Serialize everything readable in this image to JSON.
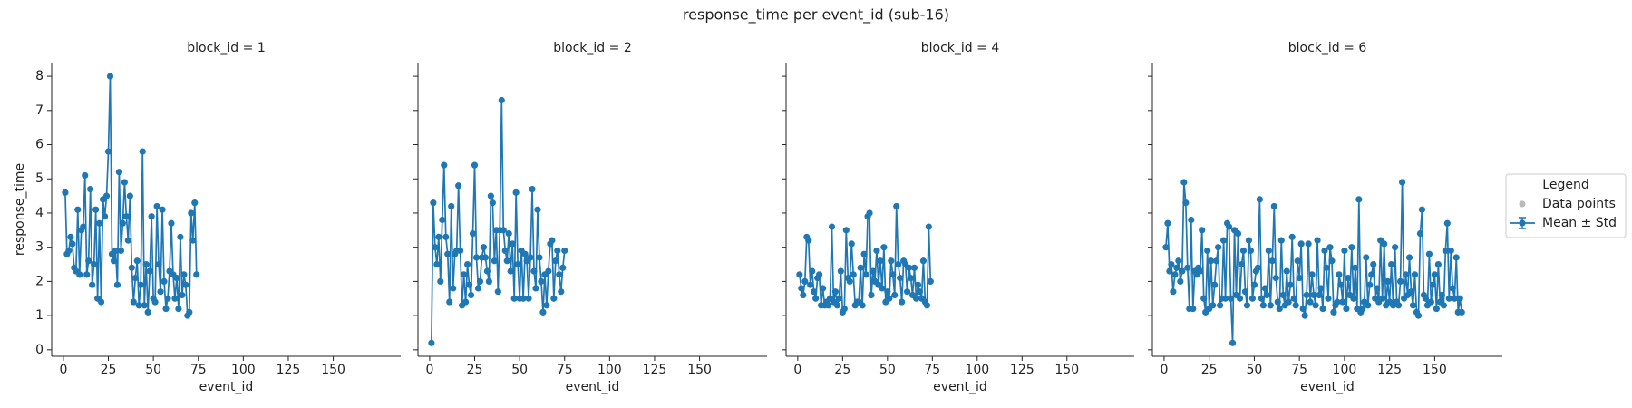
{
  "title": "response_time per event_id (sub-16)",
  "legend": {
    "title": "Legend",
    "position": "right",
    "items": [
      {
        "label": "Data points",
        "color": "#bbbbbb"
      },
      {
        "label": "Mean ± Std",
        "color": "#1f77b4"
      }
    ]
  },
  "chart_data": [
    {
      "type": "line",
      "title": "block_id = 1",
      "x_label": "event_id",
      "y_label": "response_time",
      "ytick_labels": true,
      "xlim": [
        -6.5,
        187.5
      ],
      "ylim": [
        -0.19,
        8.4
      ],
      "xticks": [
        0,
        25,
        50,
        75,
        100,
        125,
        150
      ],
      "yticks": [
        0,
        1,
        2,
        3,
        4,
        5,
        6,
        7,
        8
      ],
      "x": [
        1,
        2,
        3,
        4,
        5,
        6,
        7,
        8,
        9,
        10,
        11,
        12,
        13,
        14,
        15,
        16,
        17,
        18,
        19,
        20,
        21,
        22,
        23,
        24,
        25,
        26,
        27,
        28,
        29,
        30,
        31,
        32,
        33,
        34,
        35,
        36,
        37,
        38,
        39,
        40,
        41,
        42,
        43,
        44,
        45,
        46,
        47,
        48,
        49,
        50,
        51,
        52,
        53,
        54,
        55,
        56,
        57,
        58,
        59,
        60,
        61,
        62,
        63,
        64,
        65,
        66,
        67,
        68,
        69,
        70,
        71,
        72,
        73,
        74
      ],
      "series": [
        {
          "name": "Mean ± Std",
          "color": "#1f77b4",
          "values": [
            4.6,
            2.8,
            2.9,
            3.3,
            3.1,
            2.4,
            2.3,
            4.1,
            2.2,
            3.5,
            3.6,
            5.1,
            2.2,
            2.6,
            4.7,
            1.9,
            2.5,
            4.1,
            1.5,
            3.7,
            1.4,
            4.4,
            3.9,
            4.5,
            5.8,
            8.0,
            2.8,
            2.6,
            2.9,
            1.9,
            5.2,
            2.9,
            3.7,
            4.9,
            3.9,
            3.2,
            4.5,
            2.4,
            1.4,
            2.1,
            2.6,
            1.3,
            1.9,
            5.8,
            1.3,
            2.5,
            1.1,
            2.3,
            3.9,
            1.5,
            1.4,
            4.2,
            2.5,
            1.7,
            4.1,
            2.0,
            1.2,
            1.5,
            2.3,
            3.7,
            2.2,
            1.5,
            2.1,
            1.2,
            3.3,
            1.6,
            2.2,
            1.9,
            1.0,
            1.1,
            4.0,
            3.2,
            4.3,
            2.2
          ]
        }
      ]
    },
    {
      "type": "line",
      "title": "block_id = 2",
      "x_label": "event_id",
      "ytick_labels": false,
      "xlim": [
        -6.5,
        187.5
      ],
      "ylim": [
        -0.19,
        8.4
      ],
      "xticks": [
        0,
        25,
        50,
        75,
        100,
        125,
        150
      ],
      "yticks": [
        0,
        1,
        2,
        3,
        4,
        5,
        6,
        7,
        8
      ],
      "x": [
        1,
        2,
        3,
        4,
        5,
        6,
        7,
        8,
        9,
        10,
        11,
        12,
        13,
        14,
        15,
        16,
        17,
        18,
        19,
        20,
        21,
        22,
        23,
        24,
        25,
        26,
        27,
        28,
        29,
        30,
        31,
        32,
        33,
        34,
        35,
        36,
        37,
        38,
        39,
        40,
        41,
        42,
        43,
        44,
        45,
        46,
        47,
        48,
        49,
        50,
        51,
        52,
        53,
        54,
        55,
        56,
        57,
        58,
        59,
        60,
        61,
        62,
        63,
        64,
        65,
        66,
        67,
        68,
        69,
        70,
        71,
        72,
        73,
        74,
        75
      ],
      "series": [
        {
          "name": "Mean ± Std",
          "color": "#1f77b4",
          "values": [
            0.2,
            4.3,
            3.0,
            2.5,
            3.3,
            2.0,
            3.8,
            5.4,
            3.3,
            2.8,
            1.4,
            4.2,
            1.8,
            2.8,
            2.9,
            4.8,
            2.9,
            1.3,
            2.2,
            1.4,
            2.5,
            1.9,
            1.6,
            3.4,
            5.4,
            2.7,
            1.8,
            2.0,
            2.7,
            3.0,
            2.7,
            2.3,
            2.0,
            4.5,
            4.3,
            2.6,
            3.5,
            1.7,
            3.5,
            7.3,
            3.5,
            2.9,
            2.6,
            3.4,
            2.3,
            3.1,
            1.5,
            4.6,
            2.5,
            1.5,
            2.9,
            1.5,
            2.8,
            2.6,
            1.5,
            2.7,
            4.7,
            2.3,
            1.8,
            4.1,
            2.7,
            2.0,
            1.1,
            2.2,
            1.3,
            2.3,
            3.1,
            3.2,
            1.5,
            2.6,
            2.9,
            2.2,
            1.7,
            2.4,
            2.9
          ]
        }
      ]
    },
    {
      "type": "line",
      "title": "block_id = 4",
      "x_label": "event_id",
      "ytick_labels": false,
      "xlim": [
        -6.5,
        187.5
      ],
      "ylim": [
        -0.19,
        8.4
      ],
      "xticks": [
        0,
        25,
        50,
        75,
        100,
        125,
        150
      ],
      "yticks": [
        0,
        1,
        2,
        3,
        4,
        5,
        6,
        7,
        8
      ],
      "x": [
        1,
        2,
        3,
        4,
        5,
        6,
        7,
        8,
        9,
        10,
        11,
        12,
        13,
        14,
        15,
        16,
        17,
        18,
        19,
        20,
        21,
        22,
        23,
        24,
        25,
        26,
        27,
        28,
        29,
        30,
        31,
        32,
        33,
        34,
        35,
        36,
        37,
        38,
        39,
        40,
        41,
        42,
        43,
        44,
        45,
        46,
        47,
        48,
        49,
        50,
        51,
        52,
        53,
        54,
        55,
        56,
        57,
        58,
        59,
        60,
        61,
        62,
        63,
        64,
        65,
        66,
        67,
        68,
        69,
        70,
        71,
        72,
        73,
        74
      ],
      "series": [
        {
          "name": "Mean ± Std",
          "color": "#1f77b4",
          "values": [
            2.2,
            1.8,
            1.6,
            2.0,
            3.3,
            3.2,
            1.9,
            2.3,
            1.7,
            1.5,
            2.1,
            2.2,
            1.3,
            1.8,
            1.3,
            1.4,
            1.3,
            1.5,
            3.6,
            1.4,
            1.7,
            1.3,
            1.5,
            2.3,
            1.1,
            1.2,
            3.5,
            2.1,
            2.0,
            3.1,
            2.2,
            1.3,
            1.4,
            1.4,
            2.4,
            1.3,
            2.8,
            2.2,
            3.9,
            4.0,
            1.6,
            2.3,
            2.0,
            2.9,
            1.9,
            2.6,
            1.8,
            3.0,
            1.4,
            1.7,
            1.5,
            2.6,
            2.2,
            1.6,
            4.2,
            2.5,
            2.1,
            1.4,
            2.6,
            2.5,
            1.7,
            2.4,
            2.1,
            1.6,
            2.4,
            1.5,
            1.9,
            1.7,
            1.5,
            2.6,
            1.4,
            1.3,
            3.6,
            2.0
          ]
        }
      ]
    },
    {
      "type": "line",
      "title": "block_id = 6",
      "x_label": "event_id",
      "ytick_labels": false,
      "xlim": [
        -6.5,
        187.5
      ],
      "ylim": [
        -0.19,
        8.4
      ],
      "xticks": [
        0,
        25,
        50,
        75,
        100,
        125,
        150
      ],
      "yticks": [
        0,
        1,
        2,
        3,
        4,
        5,
        6,
        7,
        8
      ],
      "x": [
        1,
        2,
        3,
        4,
        5,
        6,
        7,
        8,
        9,
        10,
        11,
        12,
        13,
        14,
        15,
        16,
        17,
        18,
        19,
        20,
        21,
        22,
        23,
        24,
        25,
        26,
        27,
        28,
        29,
        30,
        31,
        32,
        33,
        34,
        35,
        36,
        37,
        38,
        39,
        40,
        41,
        42,
        43,
        44,
        45,
        46,
        47,
        48,
        49,
        50,
        51,
        52,
        53,
        54,
        55,
        56,
        57,
        58,
        59,
        60,
        61,
        62,
        63,
        64,
        65,
        66,
        67,
        68,
        69,
        70,
        71,
        72,
        73,
        74,
        75,
        76,
        77,
        78,
        79,
        80,
        81,
        82,
        83,
        84,
        85,
        86,
        87,
        88,
        89,
        90,
        91,
        92,
        93,
        94,
        95,
        96,
        97,
        98,
        99,
        100,
        101,
        102,
        103,
        104,
        105,
        106,
        107,
        108,
        109,
        110,
        111,
        112,
        113,
        114,
        115,
        116,
        117,
        118,
        119,
        120,
        121,
        122,
        123,
        124,
        125,
        126,
        127,
        128,
        129,
        130,
        131,
        132,
        133,
        134,
        135,
        136,
        137,
        138,
        139,
        140,
        141,
        142,
        143,
        144,
        145,
        146,
        147,
        148,
        149,
        150,
        151,
        152,
        153,
        154,
        155,
        156,
        157,
        158,
        159,
        160,
        161,
        162,
        163,
        164,
        165
      ],
      "series": [
        {
          "name": "Mean ± Std",
          "color": "#1f77b4",
          "values": [
            3.0,
            3.7,
            2.3,
            2.5,
            1.7,
            2.2,
            2.4,
            2.6,
            2.0,
            2.3,
            4.9,
            4.3,
            2.4,
            1.2,
            3.8,
            1.2,
            2.3,
            2.2,
            2.4,
            2.3,
            3.5,
            1.5,
            1.1,
            2.9,
            1.2,
            2.6,
            1.3,
            1.9,
            2.6,
            3.0,
            1.3,
            1.5,
            3.2,
            1.5,
            3.7,
            3.6,
            1.5,
            0.2,
            3.5,
            1.6,
            3.4,
            1.5,
            2.5,
            2.9,
            1.7,
            1.3,
            3.2,
            2.9,
            1.5,
            1.9,
            2.3,
            2.4,
            4.4,
            1.5,
            1.3,
            1.8,
            1.6,
            2.9,
            1.3,
            2.6,
            4.2,
            2.1,
            1.4,
            1.2,
            3.2,
            1.6,
            1.3,
            2.3,
            1.4,
            1.9,
            3.3,
            1.5,
            1.3,
            2.6,
            2.1,
            3.1,
            1.2,
            1.0,
            1.6,
            3.1,
            1.4,
            2.2,
            1.6,
            1.3,
            3.2,
            1.6,
            1.8,
            1.2,
            2.9,
            2.4,
            1.5,
            3.0,
            2.6,
            1.1,
            1.3,
            1.4,
            2.2,
            1.9,
            1.4,
            2.9,
            1.2,
            2.1,
            1.6,
            3.0,
            1.5,
            2.4,
            1.2,
            4.4,
            1.1,
            1.2,
            1.4,
            2.7,
            1.3,
            1.9,
            2.2,
            2.5,
            1.5,
            1.8,
            1.4,
            3.2,
            1.5,
            3.1,
            1.3,
            2.0,
            1.4,
            2.5,
            1.3,
            3.0,
            1.4,
            1.3,
            2.0,
            4.9,
            1.5,
            2.2,
            1.6,
            2.7,
            1.7,
            1.3,
            2.2,
            1.1,
            1.0,
            3.4,
            4.1,
            1.6,
            1.5,
            1.3,
            2.8,
            1.4,
            1.9,
            2.2,
            1.2,
            2.5,
            1.4,
            1.6,
            1.3,
            2.9,
            3.7,
            1.5,
            2.9,
            1.8,
            1.5,
            2.7,
            1.1,
            1.5,
            1.1
          ]
        }
      ]
    }
  ]
}
